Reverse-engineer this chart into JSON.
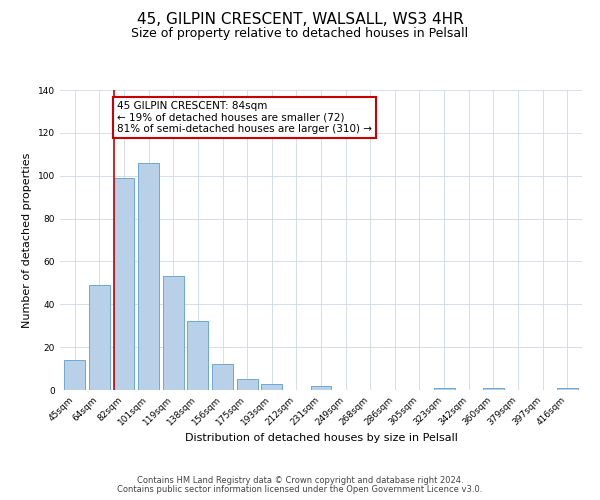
{
  "title": "45, GILPIN CRESCENT, WALSALL, WS3 4HR",
  "subtitle": "Size of property relative to detached houses in Pelsall",
  "xlabel": "Distribution of detached houses by size in Pelsall",
  "ylabel": "Number of detached properties",
  "bin_labels": [
    "45sqm",
    "64sqm",
    "82sqm",
    "101sqm",
    "119sqm",
    "138sqm",
    "156sqm",
    "175sqm",
    "193sqm",
    "212sqm",
    "231sqm",
    "249sqm",
    "268sqm",
    "286sqm",
    "305sqm",
    "323sqm",
    "342sqm",
    "360sqm",
    "379sqm",
    "397sqm",
    "416sqm"
  ],
  "bin_values": [
    14,
    49,
    99,
    106,
    53,
    32,
    12,
    5,
    3,
    0,
    2,
    0,
    0,
    0,
    0,
    1,
    0,
    1,
    0,
    0,
    1
  ],
  "bar_color": "#b8d0e8",
  "bar_edge_color": "#6aaad4",
  "vline_index": 2,
  "vline_color": "#cc0000",
  "annotation_text": "45 GILPIN CRESCENT: 84sqm\n← 19% of detached houses are smaller (72)\n81% of semi-detached houses are larger (310) →",
  "annotation_box_color": "#ffffff",
  "annotation_box_edge": "#cc0000",
  "ylim": [
    0,
    140
  ],
  "yticks": [
    0,
    20,
    40,
    60,
    80,
    100,
    120,
    140
  ],
  "footer1": "Contains HM Land Registry data © Crown copyright and database right 2024.",
  "footer2": "Contains public sector information licensed under the Open Government Licence v3.0.",
  "background_color": "#ffffff",
  "grid_color": "#cdd8e8",
  "title_fontsize": 11,
  "subtitle_fontsize": 9,
  "axis_label_fontsize": 8,
  "tick_fontsize": 6.5,
  "annotation_fontsize": 7.5,
  "footer_fontsize": 6
}
